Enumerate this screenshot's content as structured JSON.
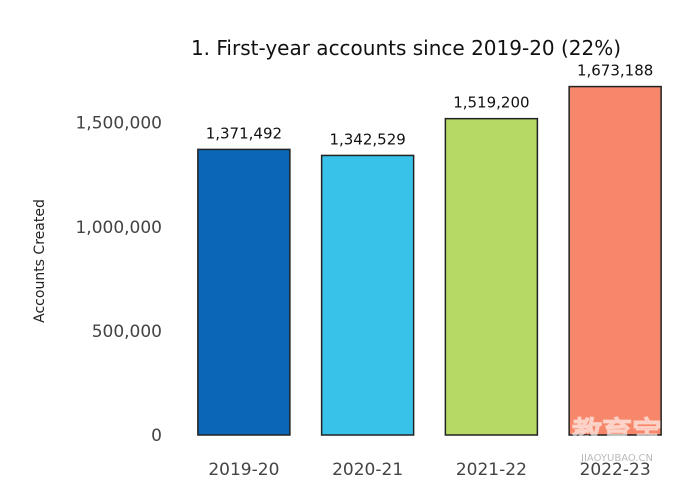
{
  "chart_data": {
    "type": "bar",
    "title": "1. First-year accounts since 2019-20 (22%)",
    "xlabel": "",
    "ylabel": "Accounts Created",
    "categories": [
      "2019-20",
      "2020-21",
      "2021-22",
      "2022-23"
    ],
    "values": [
      1371492,
      1342529,
      1519200,
      1673188
    ],
    "value_labels": [
      "1,371,492",
      "1,342,529",
      "1,519,200",
      "1,673,188"
    ],
    "colors": [
      "#0b66b8",
      "#38c2ea",
      "#b6d865",
      "#f7876a"
    ],
    "yticks": [
      0,
      500000,
      1000000,
      1500000
    ],
    "ytick_labels": [
      "0",
      "500,000",
      "1,000,000",
      "1,500,000"
    ],
    "ylim": [
      0,
      1700000
    ],
    "grid": false,
    "legend": "none"
  },
  "watermark": {
    "main": "教育宝",
    "sub": "JIAOYUBAO.CN"
  }
}
